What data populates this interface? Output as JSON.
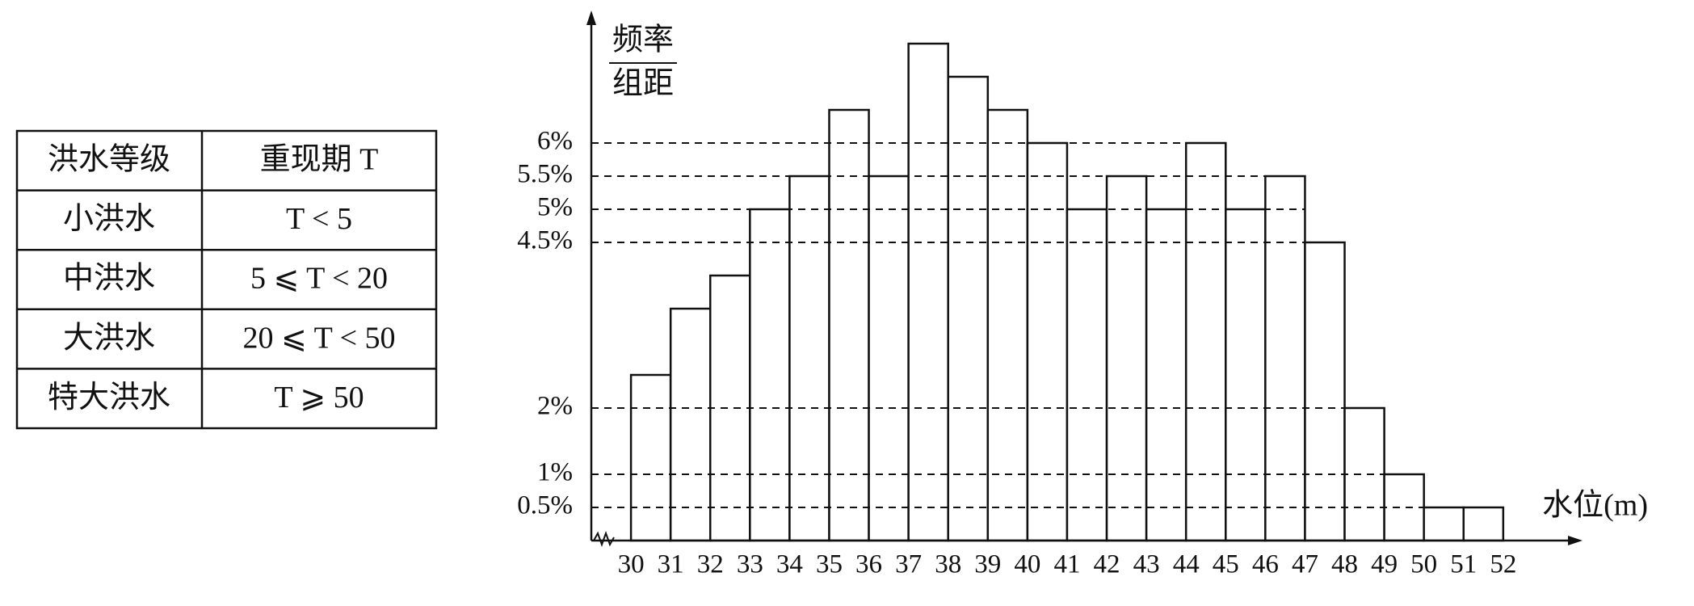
{
  "table": {
    "header": [
      "洪水等级",
      "重现期 T"
    ],
    "rows": [
      [
        "小洪水",
        "T < 5"
      ],
      [
        "中洪水",
        "5 ⩽ T < 20"
      ],
      [
        "大洪水",
        "20 ⩽ T < 50"
      ],
      [
        "特大洪水",
        "T ⩾ 50"
      ]
    ]
  },
  "chart_data": {
    "type": "histogram",
    "y_label": {
      "numerator": "频率",
      "denominator": "组距"
    },
    "x_label": "水位(m)",
    "bins": [
      30,
      31,
      32,
      33,
      34,
      35,
      36,
      37,
      38,
      39,
      40,
      41,
      42,
      43,
      44,
      45,
      46,
      47,
      48,
      49,
      50,
      51,
      52
    ],
    "values": [
      2.5,
      3.5,
      4,
      5,
      5.5,
      6.5,
      5.5,
      7.5,
      7,
      6.5,
      6,
      5,
      5.5,
      5,
      6,
      5,
      5.5,
      4.5,
      2,
      1,
      0.5,
      0.5
    ],
    "color": "#ffffff",
    "xlim": [
      29,
      54
    ],
    "ylim": [
      0,
      8
    ],
    "xticks": [
      30,
      31,
      32,
      33,
      34,
      35,
      36,
      37,
      38,
      39,
      40,
      41,
      42,
      43,
      44,
      45,
      46,
      47,
      48,
      49,
      50,
      51,
      52
    ],
    "yticks": [
      {
        "value": 0.5,
        "label": "0.5%"
      },
      {
        "value": 1,
        "label": "1%"
      },
      {
        "value": 2,
        "label": "2%"
      },
      {
        "value": 4.5,
        "label": "4.5%"
      },
      {
        "value": 5,
        "label": "5%"
      },
      {
        "value": 5.5,
        "label": "5.5%"
      },
      {
        "value": 6,
        "label": "6%"
      }
    ],
    "grid": true
  }
}
